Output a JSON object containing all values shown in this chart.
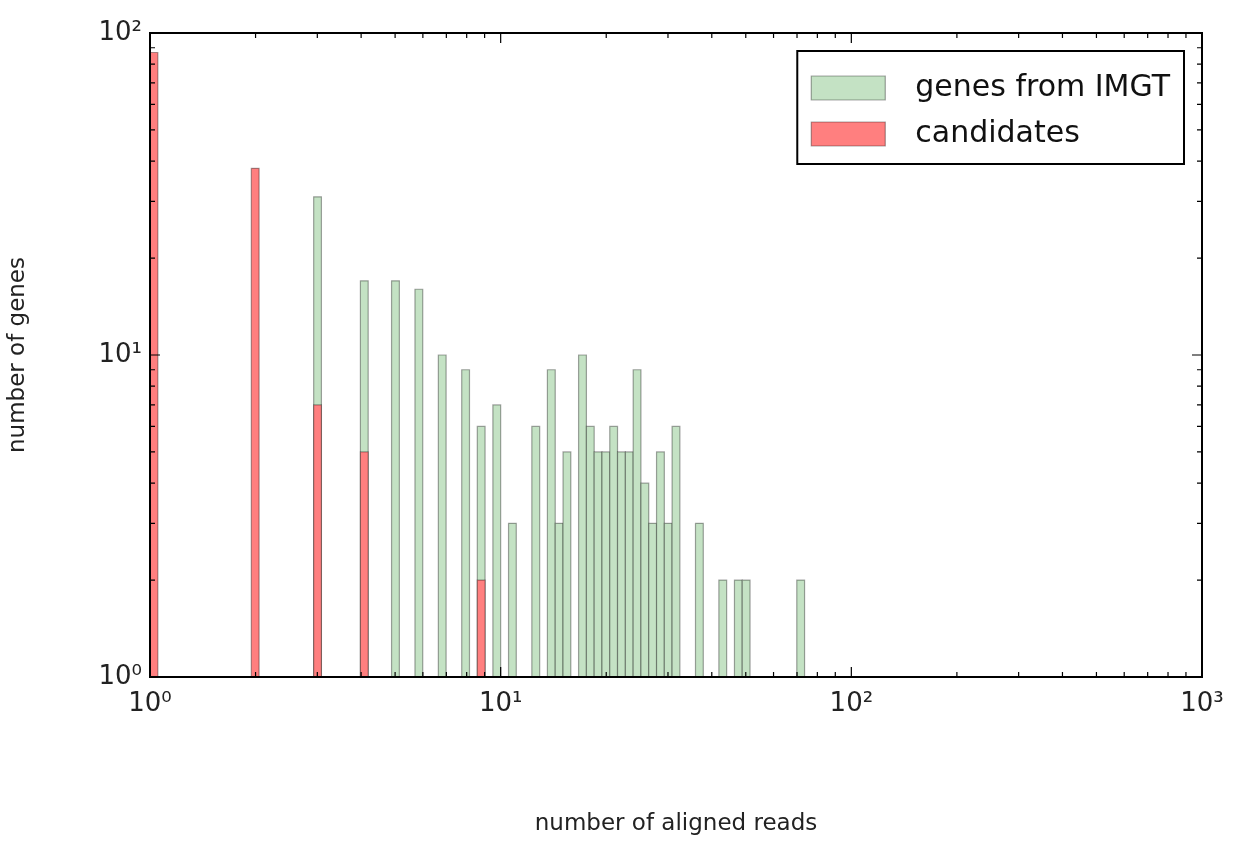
{
  "chart_data": {
    "type": "histogram",
    "xlabel": "number of aligned reads",
    "ylabel": "number of genes",
    "log": "xy",
    "xlim": [
      1,
      1000
    ],
    "ylim": [
      1,
      100
    ],
    "xticks": [
      {
        "value": 1,
        "label": "10⁰"
      },
      {
        "value": 2,
        "label": null
      },
      {
        "value": 3,
        "label": null
      },
      {
        "value": 4,
        "label": null
      },
      {
        "value": 5,
        "label": null
      },
      {
        "value": 6,
        "label": null
      },
      {
        "value": 7,
        "label": null
      },
      {
        "value": 8,
        "label": null
      },
      {
        "value": 9,
        "label": null
      },
      {
        "value": 10,
        "label": "10¹"
      },
      {
        "value": 20,
        "label": null
      },
      {
        "value": 30,
        "label": null
      },
      {
        "value": 40,
        "label": null
      },
      {
        "value": 50,
        "label": null
      },
      {
        "value": 60,
        "label": null
      },
      {
        "value": 70,
        "label": null
      },
      {
        "value": 80,
        "label": null
      },
      {
        "value": 90,
        "label": null
      },
      {
        "value": 100,
        "label": "10²"
      },
      {
        "value": 200,
        "label": null
      },
      {
        "value": 300,
        "label": null
      },
      {
        "value": 400,
        "label": null
      },
      {
        "value": 500,
        "label": null
      },
      {
        "value": 600,
        "label": null
      },
      {
        "value": 700,
        "label": null
      },
      {
        "value": 800,
        "label": null
      },
      {
        "value": 900,
        "label": null
      },
      {
        "value": 1000,
        "label": "10³"
      }
    ],
    "yticks": [
      {
        "value": 1,
        "label": "10⁰"
      },
      {
        "value": 2,
        "label": null
      },
      {
        "value": 3,
        "label": null
      },
      {
        "value": 4,
        "label": null
      },
      {
        "value": 5,
        "label": null
      },
      {
        "value": 6,
        "label": null
      },
      {
        "value": 7,
        "label": null
      },
      {
        "value": 8,
        "label": null
      },
      {
        "value": 9,
        "label": null
      },
      {
        "value": 10,
        "label": "10¹"
      },
      {
        "value": 20,
        "label": null
      },
      {
        "value": 30,
        "label": null
      },
      {
        "value": 40,
        "label": null
      },
      {
        "value": 50,
        "label": null
      },
      {
        "value": 60,
        "label": null
      },
      {
        "value": 70,
        "label": null
      },
      {
        "value": 80,
        "label": null
      },
      {
        "value": 90,
        "label": null
      },
      {
        "value": 100,
        "label": "10²"
      }
    ],
    "bins": [
      1,
      1.053,
      1.945,
      2.047,
      2.929,
      3.082,
      3.981,
      4.19,
      4.885,
      5.142,
      5.696,
      5.995,
      6.641,
      6.989,
      7.743,
      8.149,
      8.577,
      9.027,
      9.501,
      10,
      10.53,
      11.08,
      12.27,
      12.92,
      13.59,
      14.31,
      15.06,
      15.85,
      16.68,
      17.56,
      18.48,
      19.45,
      20.47,
      21.54,
      22.68,
      23.87,
      25.12,
      26.44,
      27.83,
      29.29,
      30.82,
      32.44,
      35.94,
      37.83,
      41.9,
      44.1,
      46.42,
      48.85,
      51.42,
      69.89,
      73.56
    ],
    "series": [
      {
        "name": "genes from IMGT",
        "color": "#c4e2c4",
        "values": [
          null,
          null,
          null,
          null,
          31,
          null,
          17,
          null,
          17,
          null,
          16,
          null,
          10,
          null,
          9,
          null,
          6,
          null,
          7,
          null,
          3,
          null,
          6,
          null,
          9,
          3,
          5,
          null,
          10,
          6,
          5,
          5,
          6,
          5,
          5,
          9,
          4,
          3,
          5,
          3,
          6,
          null,
          3,
          null,
          2,
          null,
          2,
          2,
          null,
          2
        ]
      },
      {
        "name": "candidates",
        "color": "#ff7f7f",
        "values": [
          87,
          null,
          38,
          null,
          7,
          null,
          5,
          null,
          null,
          null,
          null,
          null,
          null,
          null,
          null,
          null,
          2,
          null,
          null,
          null,
          null,
          null,
          null,
          null,
          null,
          null,
          null,
          null,
          null,
          null,
          null,
          null,
          null,
          null,
          null,
          null,
          null,
          null,
          null,
          null,
          null,
          null,
          null,
          null,
          null,
          null,
          null,
          null,
          null,
          null
        ]
      }
    ],
    "legend": "top right"
  }
}
